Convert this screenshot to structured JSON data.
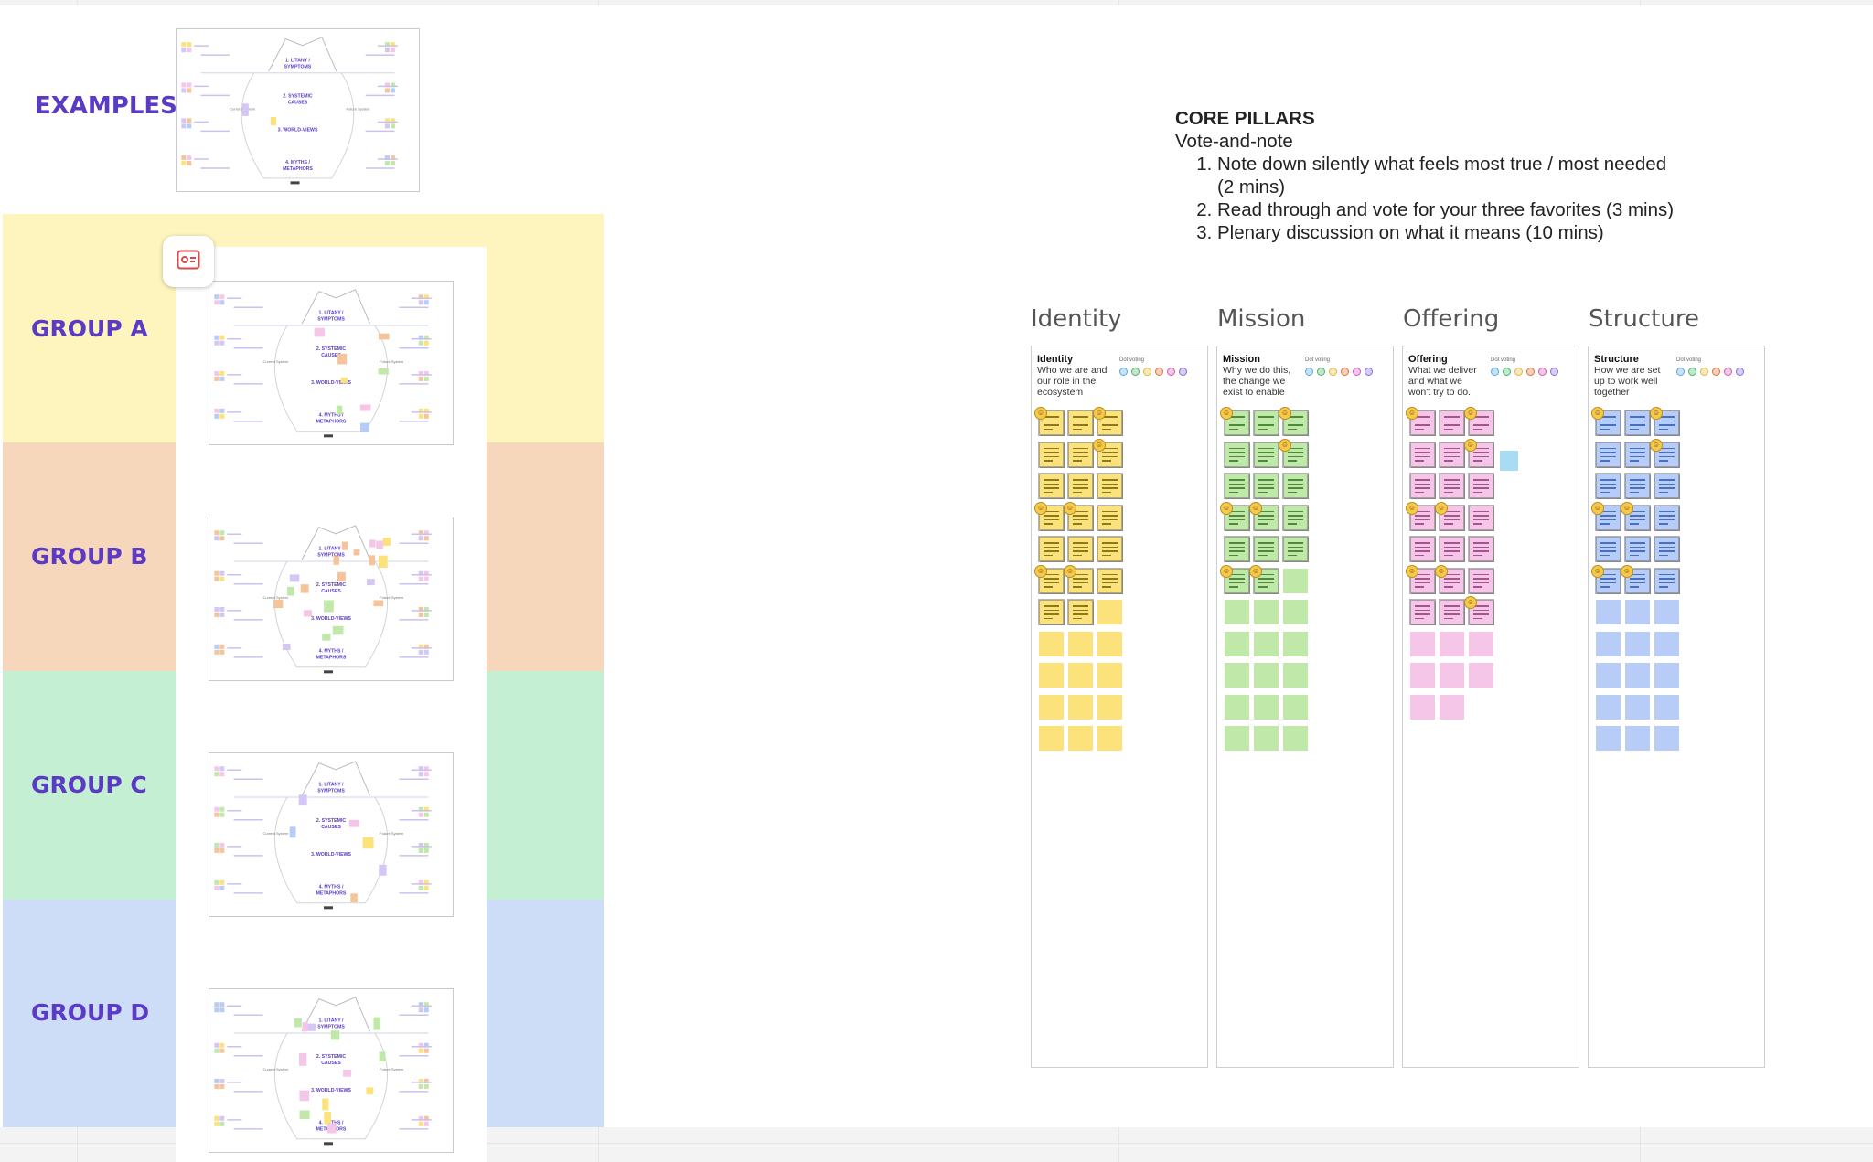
{
  "examples_label": "EXAMPLES",
  "groups": [
    {
      "label": "GROUP A",
      "color": "#fdf5bd"
    },
    {
      "label": "GROUP B",
      "color": "#f6d7bb"
    },
    {
      "label": "GROUP C",
      "color": "#c5efd2"
    },
    {
      "label": "GROUP D",
      "color": "#cddcf7"
    }
  ],
  "thumbnail_labels": [
    "1. LITANY / SYMPTOMS",
    "2. SYSTEMIC CAUSES",
    "3. WORLD-VIEWS",
    "4. MYTHS / METAPHORS"
  ],
  "thumbnail_side_labels": [
    "Current System",
    "Future System"
  ],
  "instructions": {
    "title": "CORE PILLARS",
    "subtitle": "Vote-and-note",
    "steps": [
      "Note down silently what feels most true / most needed (2 mins)",
      "Read through and vote for your three favorites (3 mins)",
      "Plenary discussion on what it means (10 mins)"
    ]
  },
  "dot_voting_label": "Dot voting",
  "columns": [
    {
      "title": "Identity",
      "heading": "Identity",
      "description": "Who we are and our role in the ecosystem",
      "note_color": "#fbe27a",
      "line_color": "#8a7a1a",
      "filled": 20,
      "total": 33
    },
    {
      "title": "Mission",
      "heading": "Mission",
      "description": "Why we do this, the change we exist to enable",
      "note_color": "#bfe8a9",
      "line_color": "#4f8a3a",
      "filled": 17,
      "total": 33
    },
    {
      "title": "Offering",
      "heading": "Offering",
      "description": "What we deliver and what we won't try to do.",
      "note_color": "#f6c6e8",
      "line_color": "#a4558e",
      "filled": 21,
      "total": 29
    },
    {
      "title": "Structure",
      "heading": "Structure",
      "description": "How we are set up to work well together",
      "note_color": "#b7ccf7",
      "line_color": "#4870c0",
      "filled": 18,
      "total": 33
    }
  ],
  "dot_colors": [
    "#5aa7e0",
    "#4bb36b",
    "#e0b93a",
    "#e0733a",
    "#d45ab6",
    "#8a6cd8"
  ],
  "icons": {
    "present": "presentation-icon"
  }
}
